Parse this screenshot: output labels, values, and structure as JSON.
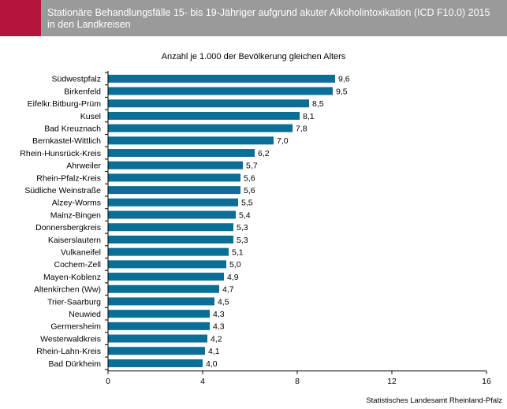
{
  "header": {
    "title_line1": "Stationäre Behandlungsfälle 15- bis 19-Jähriger aufgrund akuter Alkoholintoxikation (ICD F10.0) 2015",
    "title_line2": "in den Landkreisen"
  },
  "subtitle": "Anzahl je 1.000 der Bevölkerung gleichen Alters",
  "source": "Statistisches Landesamt Rheinland-Pfalz",
  "colors": {
    "bar": "#0a6e96",
    "header_bg": "#9a9a9a",
    "accent": "#b3163c"
  },
  "chart_data": {
    "type": "bar",
    "orientation": "horizontal",
    "categories": [
      "Südwestpfalz",
      "Birkenfeld",
      "Eifelkr.Bitburg-Prüm",
      "Kusel",
      "Bad Kreuznach",
      "Bernkastel-Wittlich",
      "Rhein-Hunsrück-Kreis",
      "Ahrweiler",
      "Rhein-Pfalz-Kreis",
      "Südliche Weinstraße",
      "Alzey-Worms",
      "Mainz-Bingen",
      "Donnersbergkreis",
      "Kaiserslautern",
      "Vulkaneifel",
      "Cochem-Zell",
      "Mayen-Koblenz",
      "Altenkirchen (Ww)",
      "Trier-Saarburg",
      "Neuwied",
      "Germersheim",
      "Westerwaldkreis",
      "Rhein-Lahn-Kreis",
      "Bad Dürkheim"
    ],
    "values": [
      9.6,
      9.5,
      8.5,
      8.1,
      7.8,
      7.0,
      6.2,
      5.7,
      5.6,
      5.6,
      5.5,
      5.4,
      5.3,
      5.3,
      5.1,
      5.0,
      4.9,
      4.7,
      4.5,
      4.3,
      4.3,
      4.2,
      4.1,
      4.0
    ],
    "value_labels": [
      "9,6",
      "9,5",
      "8,5",
      "8,1",
      "7,8",
      "7,0",
      "6,2",
      "5,7",
      "5,6",
      "5,6",
      "5,5",
      "5,4",
      "5,3",
      "5,3",
      "5,1",
      "5,0",
      "4,9",
      "4,7",
      "4,5",
      "4,3",
      "4,3",
      "4,2",
      "4,1",
      "4,0"
    ],
    "xlim": [
      0,
      16
    ],
    "xticks": [
      0,
      4,
      8,
      12,
      16
    ],
    "xtick_labels": [
      "0",
      "4",
      "8",
      "12",
      "16"
    ],
    "grid": false,
    "legend": "none"
  }
}
